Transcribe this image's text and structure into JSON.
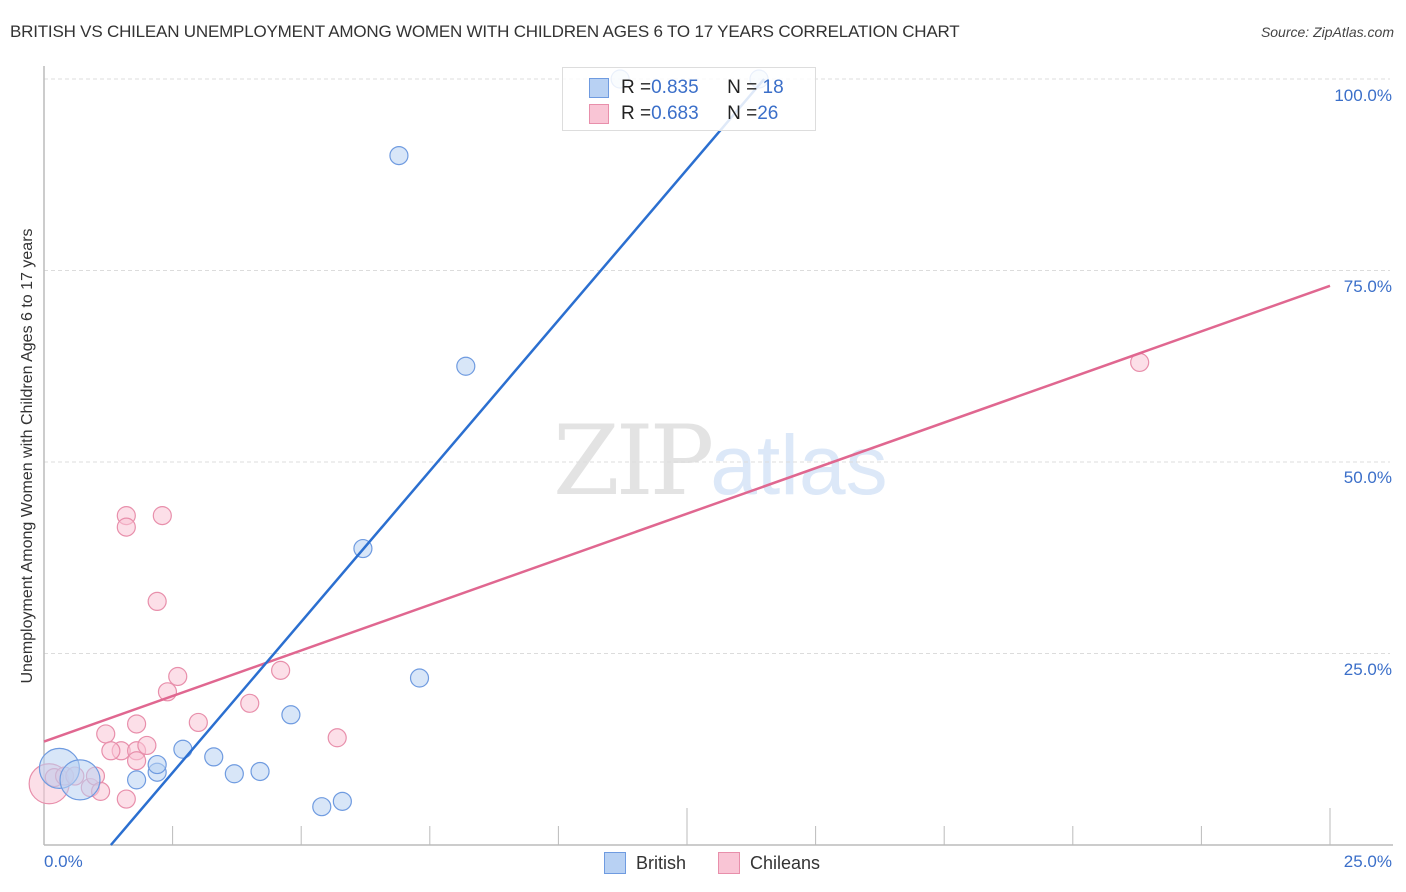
{
  "header": {
    "title": "BRITISH VS CHILEAN UNEMPLOYMENT AMONG WOMEN WITH CHILDREN AGES 6 TO 17 YEARS CORRELATION CHART",
    "source": "Source: ZipAtlas.com"
  },
  "watermark": {
    "zip": "ZIP",
    "atlas": "atlas"
  },
  "legend": {
    "british": {
      "r_label": "R = ",
      "r_value": "0.835",
      "n_label": "N = ",
      "n_value": "18"
    },
    "chileans": {
      "r_label": "R = ",
      "r_value": "0.683",
      "n_label": "N = ",
      "n_value": "26"
    }
  },
  "bottom_legend": {
    "british": "British",
    "chileans": "Chileans"
  },
  "axes": {
    "ylabel": "Unemployment Among Women with Children Ages 6 to 17 years",
    "y_ticks": [
      "100.0%",
      "75.0%",
      "50.0%",
      "25.0%"
    ],
    "x_min_label": "0.0%",
    "x_max_label": "25.0%"
  },
  "colors": {
    "british_fill": "#b8d1f3",
    "british_stroke": "#6f9be0",
    "british_line": "#2b6fd0",
    "chileans_fill": "#f9c5d5",
    "chileans_stroke": "#e88fab",
    "chileans_line": "#e06790",
    "tick_label": "#3b6fc9"
  },
  "chart_data": {
    "type": "scatter",
    "title": "BRITISH VS CHILEAN UNEMPLOYMENT AMONG WOMEN WITH CHILDREN AGES 6 TO 17 YEARS CORRELATION CHART",
    "xlabel": "",
    "ylabel": "Unemployment Among Women with Children Ages 6 to 17 years",
    "xlim": [
      0,
      25
    ],
    "ylim": [
      0,
      100
    ],
    "x_ticks": [
      "0.0%",
      "25.0%"
    ],
    "y_ticks": [
      "25.0%",
      "50.0%",
      "75.0%",
      "100.0%"
    ],
    "grid": true,
    "legend_position": "bottom",
    "series": [
      {
        "name": "British",
        "r": 0.835,
        "n": 18,
        "points": [
          {
            "x": 0.3,
            "y": 10.0,
            "size": "large"
          },
          {
            "x": 0.7,
            "y": 8.5,
            "size": "large"
          },
          {
            "x": 1.8,
            "y": 8.5
          },
          {
            "x": 2.2,
            "y": 9.5
          },
          {
            "x": 2.2,
            "y": 10.5
          },
          {
            "x": 2.7,
            "y": 12.5
          },
          {
            "x": 3.3,
            "y": 11.5
          },
          {
            "x": 3.7,
            "y": 9.3
          },
          {
            "x": 4.2,
            "y": 9.6
          },
          {
            "x": 4.8,
            "y": 17.0
          },
          {
            "x": 5.4,
            "y": 5.0
          },
          {
            "x": 5.8,
            "y": 5.7
          },
          {
            "x": 6.2,
            "y": 38.7
          },
          {
            "x": 6.9,
            "y": 90.0
          },
          {
            "x": 7.3,
            "y": 21.8
          },
          {
            "x": 8.2,
            "y": 62.5
          },
          {
            "x": 11.2,
            "y": 100.0
          },
          {
            "x": 13.9,
            "y": 100.0
          }
        ],
        "trendline": {
          "x1": 1.3,
          "y1": 0.0,
          "x2": 14.0,
          "y2": 100.0
        }
      },
      {
        "name": "Chileans",
        "r": 0.683,
        "n": 26,
        "points": [
          {
            "x": 0.1,
            "y": 8.0,
            "size": "large"
          },
          {
            "x": 0.2,
            "y": 8.8
          },
          {
            "x": 0.4,
            "y": 9.0
          },
          {
            "x": 0.6,
            "y": 9.0
          },
          {
            "x": 0.9,
            "y": 7.5
          },
          {
            "x": 1.0,
            "y": 9.0
          },
          {
            "x": 1.1,
            "y": 7.0
          },
          {
            "x": 1.5,
            "y": 12.3
          },
          {
            "x": 1.8,
            "y": 15.8
          },
          {
            "x": 1.2,
            "y": 14.5
          },
          {
            "x": 1.3,
            "y": 12.3
          },
          {
            "x": 1.8,
            "y": 12.3
          },
          {
            "x": 1.6,
            "y": 6.0
          },
          {
            "x": 1.8,
            "y": 11.0
          },
          {
            "x": 2.0,
            "y": 13.0
          },
          {
            "x": 1.6,
            "y": 43.0
          },
          {
            "x": 1.6,
            "y": 41.5
          },
          {
            "x": 2.3,
            "y": 43.0
          },
          {
            "x": 2.2,
            "y": 31.8
          },
          {
            "x": 2.4,
            "y": 20.0
          },
          {
            "x": 2.6,
            "y": 22.0
          },
          {
            "x": 3.0,
            "y": 16.0
          },
          {
            "x": 4.0,
            "y": 18.5
          },
          {
            "x": 4.6,
            "y": 22.8
          },
          {
            "x": 5.7,
            "y": 14.0
          },
          {
            "x": 21.3,
            "y": 63.0
          }
        ],
        "trendline": {
          "x1": 0.0,
          "y1": 13.5,
          "x2": 25.0,
          "y2": 73.0
        }
      }
    ]
  }
}
